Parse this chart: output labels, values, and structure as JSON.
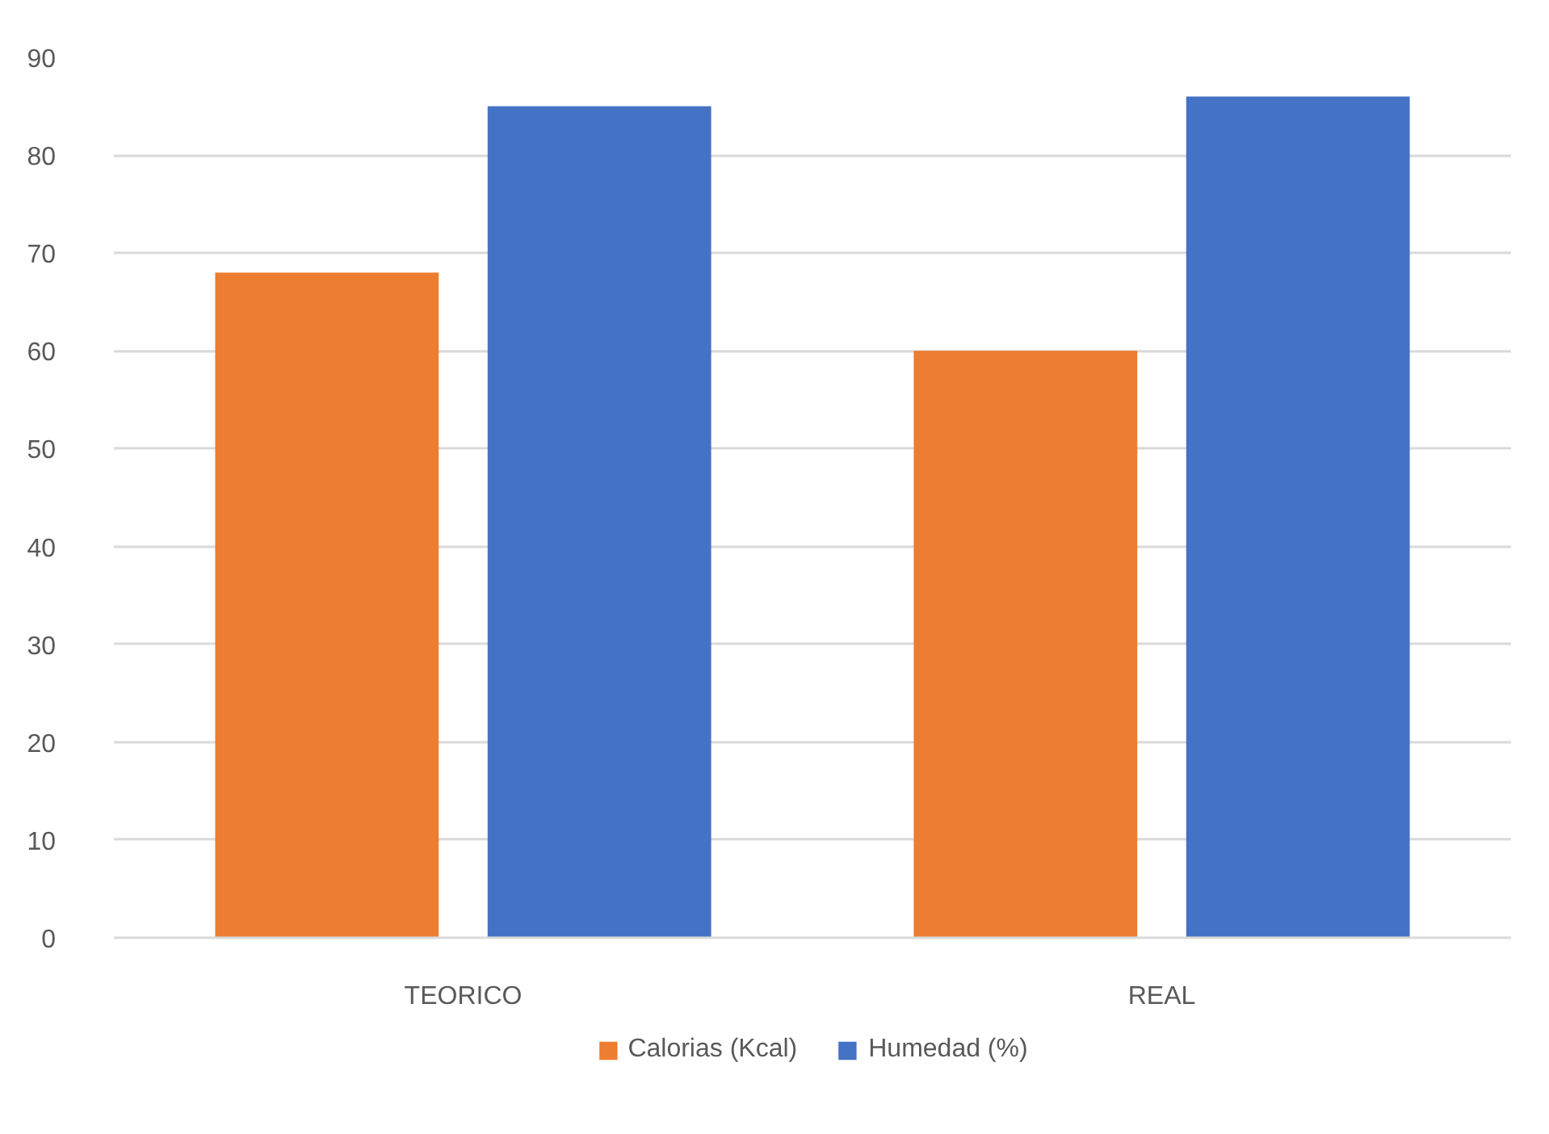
{
  "chart_data": {
    "type": "bar",
    "categories": [
      "TEORICO",
      "REAL"
    ],
    "series": [
      {
        "name": "Calorias (Kcal)",
        "color": "#ed7d31",
        "values": [
          68,
          60
        ]
      },
      {
        "name": "Humedad (%)",
        "color": "#4472c4",
        "values": [
          85,
          86
        ]
      }
    ],
    "ylim": [
      0,
      90
    ],
    "yticks": [
      0,
      10,
      20,
      30,
      40,
      50,
      60,
      70,
      80,
      90
    ],
    "grid": "y",
    "legend": "bottom"
  }
}
